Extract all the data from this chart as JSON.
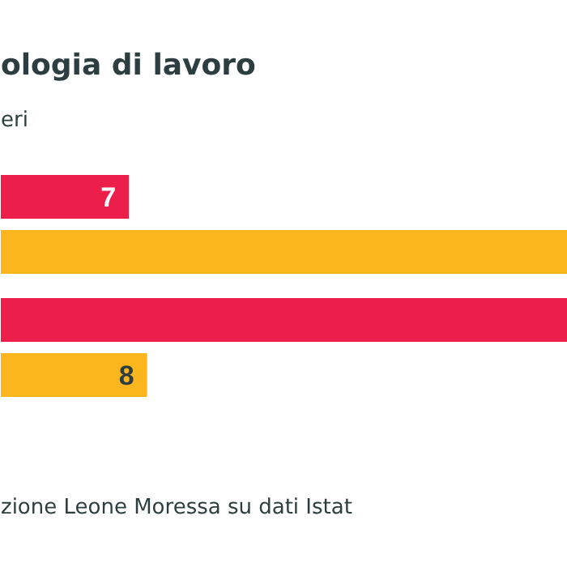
{
  "chart_data": {
    "type": "bar",
    "orientation": "horizontal",
    "title": "ologia di lavoro",
    "subtitle": "eri",
    "annotations": [
      "zione Leone Moressa su dati Istat"
    ],
    "categories": [
      null,
      null
    ],
    "xlim": [
      0,
      31
    ],
    "tick_labels": false,
    "series": [
      {
        "color": "#ec1f4b",
        "values": [
          7,
          31
        ],
        "value_labels": [
          "7",
          null
        ]
      },
      {
        "color": "#fbb61e",
        "values": [
          31,
          8
        ],
        "value_labels": [
          null,
          "8"
        ]
      }
    ]
  }
}
